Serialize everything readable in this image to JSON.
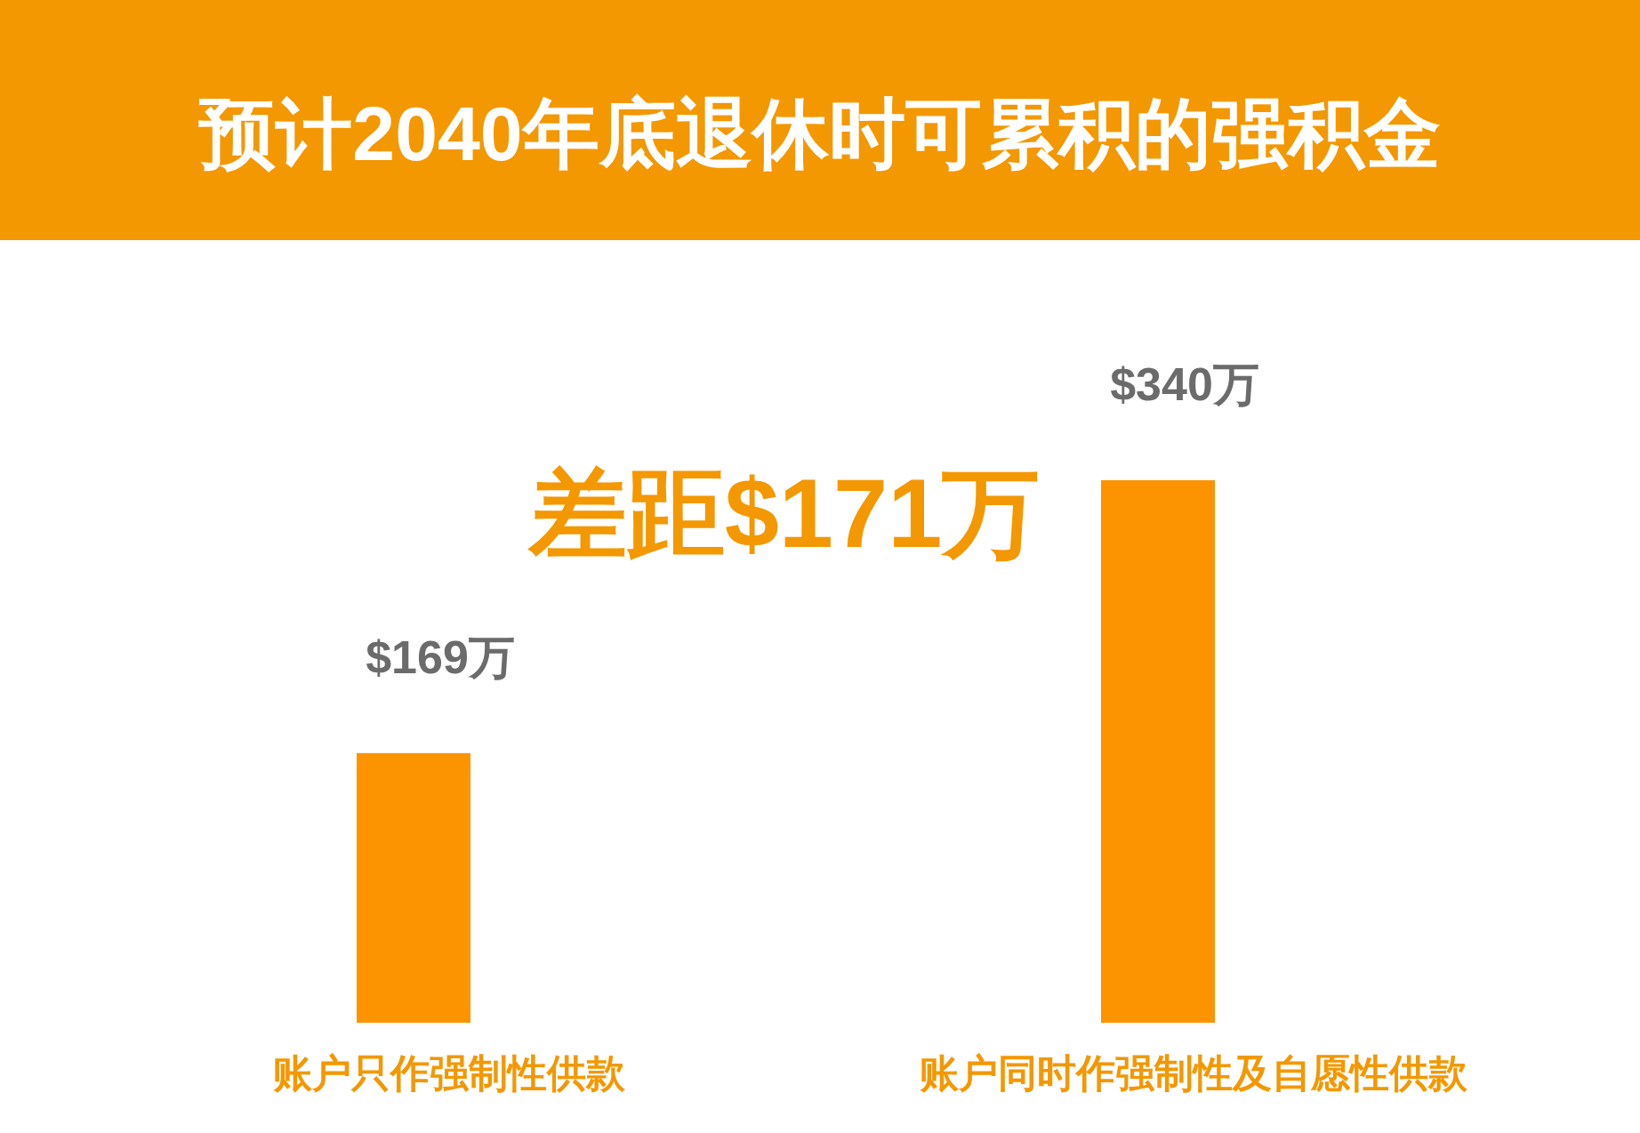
{
  "chart_data": {
    "type": "bar",
    "title": "预计2040年底退休时可累积的强积金",
    "categories": [
      "账户只作强制性供款",
      "账户同时作强制性及自愿性供款"
    ],
    "values": [
      169,
      340
    ],
    "value_labels": [
      "$169万",
      "$340万"
    ],
    "color": "#fb9400",
    "annotations": [
      "差距$171万"
    ]
  }
}
